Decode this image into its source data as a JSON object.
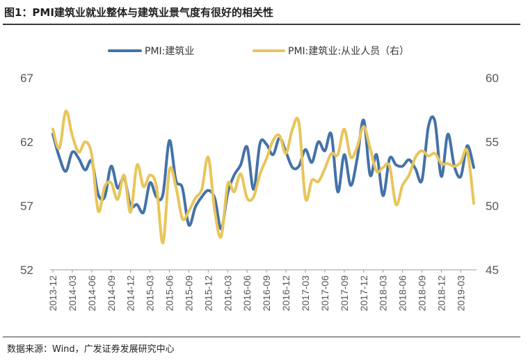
{
  "title": "图1：PMI建筑业就业整体与建筑业景气度有很好的相关性",
  "source": "数据来源：Wind，广发证券发展研究中心",
  "chart_data": {
    "type": "line",
    "title": "图1：PMI建筑业就业整体与建筑业景气度有很好的相关性",
    "x": [
      "2013-12",
      "2014-01",
      "2014-02",
      "2014-03",
      "2014-04",
      "2014-05",
      "2014-06",
      "2014-07",
      "2014-08",
      "2014-09",
      "2014-10",
      "2014-11",
      "2014-12",
      "2015-01",
      "2015-02",
      "2015-03",
      "2015-04",
      "2015-05",
      "2015-06",
      "2015-07",
      "2015-08",
      "2015-09",
      "2015-10",
      "2015-11",
      "2015-12",
      "2016-01",
      "2016-02",
      "2016-03",
      "2016-04",
      "2016-05",
      "2016-06",
      "2016-07",
      "2016-08",
      "2016-09",
      "2016-10",
      "2016-11",
      "2016-12",
      "2017-01",
      "2017-02",
      "2017-03",
      "2017-04",
      "2017-05",
      "2017-06",
      "2017-07",
      "2017-08",
      "2017-09",
      "2017-10",
      "2017-11",
      "2017-12",
      "2018-01",
      "2018-02",
      "2018-03",
      "2018-04",
      "2018-05",
      "2018-06",
      "2018-07",
      "2018-08",
      "2018-09",
      "2018-10",
      "2018-11",
      "2018-12",
      "2019-01",
      "2019-02",
      "2019-03",
      "2019-04",
      "2019-05"
    ],
    "x_tick_labels": [
      "2013-12",
      "2014-03",
      "2014-06",
      "2014-09",
      "2014-12",
      "2015-03",
      "2015-06",
      "2015-09",
      "2015-12",
      "2016-03",
      "2016-06",
      "2016-09",
      "2016-12",
      "2017-03",
      "2017-06",
      "2017-09",
      "2017-12",
      "2018-03",
      "2018-06",
      "2018-09",
      "2018-12",
      "2019-03"
    ],
    "y_left": {
      "ticks": [
        "52",
        "57",
        "62",
        "67"
      ],
      "lim": [
        52,
        67
      ]
    },
    "y_right": {
      "ticks": [
        "45",
        "50",
        "55",
        "60"
      ],
      "lim": [
        45,
        60
      ]
    },
    "legend_position": "top-center",
    "grid": false,
    "series": [
      {
        "name": "PMI:建筑业",
        "axis": "left",
        "color": "#4472a8",
        "values": [
          62.6,
          60.8,
          59.7,
          61.2,
          60.7,
          59.8,
          60.5,
          57.9,
          57.7,
          60.1,
          58.4,
          59.2,
          57.0,
          57.1,
          56.5,
          58.8,
          57.7,
          57.9,
          62.1,
          59.0,
          58.4,
          55.5,
          56.9,
          57.7,
          58.2,
          57.6,
          55.2,
          58.0,
          59.4,
          60.2,
          61.6,
          58.3,
          61.9,
          61.8,
          61.0,
          62.3,
          61.2,
          60.0,
          60.1,
          61.4,
          60.4,
          62.0,
          61.3,
          62.6,
          58.1,
          61.0,
          58.6,
          60.7,
          63.7,
          59.4,
          61.0,
          57.8,
          60.7,
          60.2,
          60.1,
          60.6,
          59.9,
          59.0,
          63.2,
          63.6,
          59.3,
          62.6,
          60.1,
          59.3,
          61.7,
          60.0
        ]
      },
      {
        "name": "PMI:建筑业:从业人员（右）",
        "axis": "right",
        "color": "#e8c55b",
        "values": [
          56.0,
          54.5,
          57.4,
          55.5,
          54.2,
          55.0,
          54.0,
          49.6,
          51.5,
          51.8,
          50.5,
          52.4,
          49.5,
          53.2,
          51.5,
          52.4,
          51.5,
          47.1,
          52.8,
          51.5,
          49.0,
          49.6,
          50.6,
          51.3,
          53.8,
          49.6,
          47.6,
          51.7,
          51.1,
          52.5,
          50.6,
          50.7,
          52.5,
          53.7,
          55.1,
          55.5,
          54.1,
          56.0,
          56.5,
          50.6,
          52.0,
          51.9,
          52.9,
          54.1,
          54.0,
          56.0,
          53.8,
          54.6,
          56.2,
          54.5,
          52.7,
          53.0,
          53.1,
          50.1,
          51.6,
          52.4,
          53.8,
          54.3,
          53.9,
          54.1,
          53.3,
          53.3,
          53.1,
          53.4,
          54.3,
          50.2
        ]
      }
    ]
  }
}
